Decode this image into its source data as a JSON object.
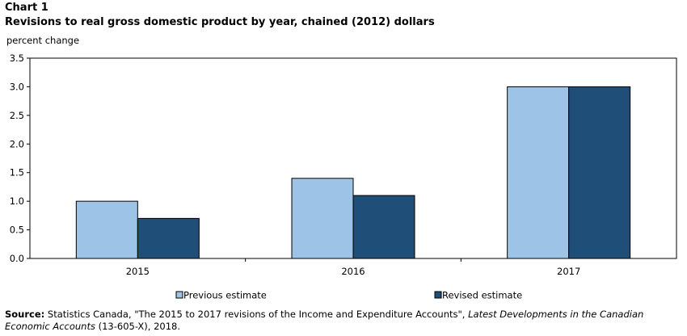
{
  "header": {
    "chart_number": "Chart 1",
    "title": "Revisions to real gross domestic product by year, chained (2012) dollars"
  },
  "chart_data": {
    "type": "bar",
    "title": "Revisions to real gross domestic product by year, chained (2012) dollars",
    "ylabel": "percent change",
    "xlabel": "",
    "categories": [
      "2015",
      "2016",
      "2017"
    ],
    "series": [
      {
        "name": "Previous estimate",
        "values": [
          1.0,
          1.4,
          3.0
        ],
        "color": "#9dc3e6"
      },
      {
        "name": "Revised estimate",
        "values": [
          0.7,
          1.1,
          3.0
        ],
        "color": "#1f4e79"
      }
    ],
    "ylim": [
      0,
      3.5
    ],
    "yticks": [
      "0.0",
      "0.5",
      "1.0",
      "1.5",
      "2.0",
      "2.5",
      "3.0",
      "3.5"
    ],
    "grid": false,
    "legend": "bottom"
  },
  "source": {
    "label": "Source:",
    "text_1": " Statistics Canada, \"The 2015 to 2017 revisions of the Income and Expenditure Accounts\", ",
    "publication": "Latest Developments in the Canadian Economic Accounts",
    "text_2": " (13-605-X), 2018."
  }
}
